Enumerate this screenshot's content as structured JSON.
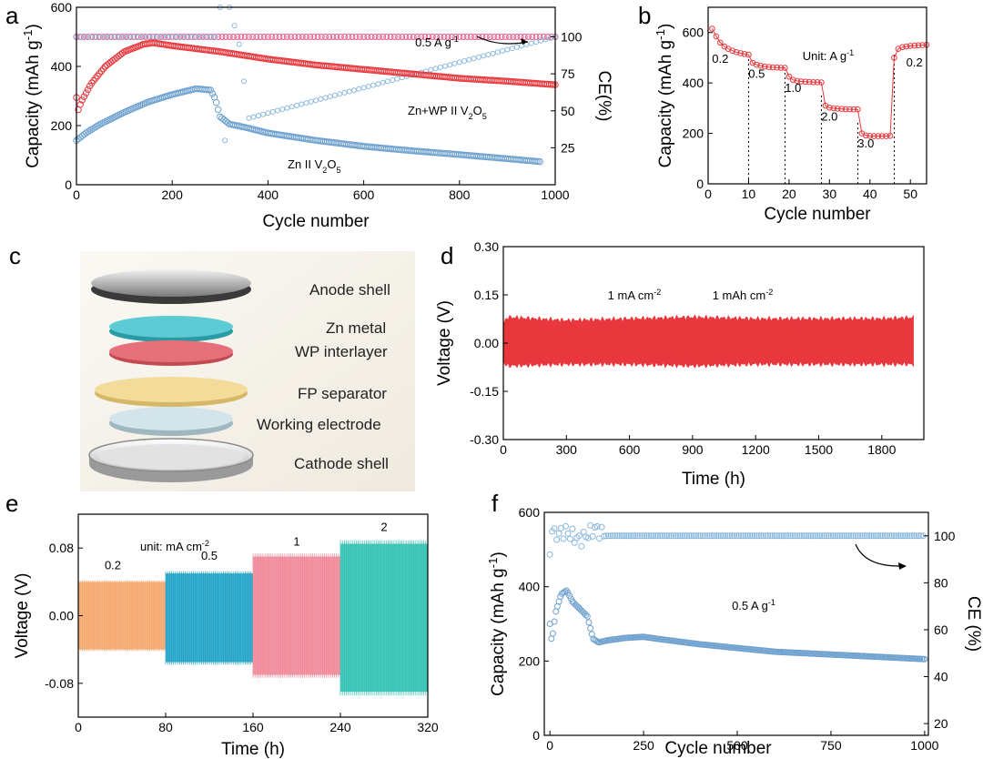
{
  "colors": {
    "red": "#e8383d",
    "blue": "#6fa1cf",
    "pink_ce": "#e85c86",
    "lightblue_ce": "#8ab8dd",
    "orange": "#f5a468",
    "teal_blue": "#1aa0c6",
    "pink": "#f08595",
    "teal": "#2cc0b0",
    "cell_anode": "#8a8a8a",
    "cell_zn": "#4ac3cc",
    "cell_wp": "#e46a72",
    "cell_fp": "#f0d890",
    "cell_work": "#c8dde4",
    "cell_cathode": "#d0d0d0"
  },
  "chart_data": [
    {
      "panel": "a",
      "type": "scatter",
      "xlabel": "Cycle number",
      "ylabel_main": "Capacity (mAh g",
      "ylabel_sup": "-1",
      "ylabel_close": ")",
      "ylabel_right": "CE(%)",
      "xlim": [
        0,
        1000
      ],
      "ylim": [
        0,
        600
      ],
      "ylim_right": [
        0,
        120
      ],
      "xticks": [
        "0",
        "200",
        "400",
        "600",
        "800",
        "1000"
      ],
      "yticks": [
        "0",
        "200",
        "400",
        "600"
      ],
      "yticks_right": [
        "25",
        "50",
        "75",
        "100"
      ],
      "rate_label_main": "0.5 A g",
      "rate_label_sup": "-1",
      "series_labels": [
        {
          "name": "Zn+WP",
          "main": "Zn+WP II V",
          "sub": "2",
          "mid": "O",
          "sub2": "5"
        },
        {
          "name": "Zn",
          "main": "Zn II V",
          "sub": "2",
          "mid": "O",
          "sub2": "5"
        }
      ],
      "series": [
        {
          "name": "Zn+WP II V2O5 capacity",
          "x": [
            0,
            2,
            10,
            30,
            60,
            100,
            140,
            160,
            200,
            300,
            400,
            500,
            600,
            700,
            800,
            900,
            1000
          ],
          "y": [
            295,
            245,
            280,
            340,
            400,
            450,
            475,
            480,
            470,
            450,
            425,
            405,
            390,
            375,
            360,
            350,
            338
          ]
        },
        {
          "name": "Zn II V2O5 capacity",
          "x": [
            0,
            20,
            50,
            100,
            150,
            200,
            250,
            280,
            290,
            300,
            320,
            350,
            400,
            500,
            600,
            700,
            800,
            900,
            970
          ],
          "y": [
            150,
            175,
            205,
            245,
            280,
            305,
            325,
            320,
            290,
            230,
            205,
            195,
            175,
            150,
            130,
            115,
            102,
            88,
            78
          ]
        },
        {
          "name": "Zn+WP CE",
          "x": [
            0,
            1000
          ],
          "y": [
            100,
            100
          ]
        },
        {
          "name": "Zn CE",
          "x": [
            0,
            290,
            300,
            310,
            320,
            340,
            360,
            1000
          ],
          "y": [
            100,
            100,
            120,
            30,
            120,
            95,
            45,
            100
          ]
        }
      ]
    },
    {
      "panel": "b",
      "type": "line",
      "xlabel": "Cycle number",
      "ylabel_main": "Capacity (mAh g",
      "ylabel_sup": "-1",
      "ylabel_close": ")",
      "xlim": [
        0,
        54
      ],
      "ylim": [
        0,
        700
      ],
      "xticks": [
        "0",
        "10",
        "20",
        "30",
        "40",
        "50"
      ],
      "yticks": [
        "0",
        "200",
        "400",
        "600"
      ],
      "unit_main": "Unit: A g",
      "unit_sup": "-1",
      "rate_labels": [
        "0.2",
        "0.5",
        "1.0",
        "2.0",
        "3.0",
        "0.2"
      ],
      "rate_label_x": [
        3,
        12,
        21,
        30,
        39,
        51
      ],
      "rate_label_y": [
        480,
        420,
        365,
        250,
        145,
        465
      ],
      "dividers": [
        10,
        19,
        28,
        37,
        46
      ],
      "series": [
        {
          "name": "capacity",
          "x": [
            1,
            2,
            3,
            4,
            5,
            6,
            7,
            8,
            9,
            10,
            11,
            12,
            13,
            14,
            15,
            16,
            17,
            18,
            19,
            20,
            21,
            22,
            23,
            24,
            25,
            26,
            27,
            28,
            29,
            30,
            31,
            32,
            33,
            34,
            35,
            36,
            37,
            38,
            39,
            40,
            41,
            42,
            43,
            44,
            45,
            46,
            47,
            48,
            49,
            50,
            51,
            52,
            53,
            54
          ],
          "y": [
            615,
            585,
            560,
            545,
            535,
            528,
            522,
            518,
            515,
            512,
            480,
            472,
            468,
            465,
            463,
            462,
            461,
            460,
            460,
            425,
            412,
            408,
            406,
            405,
            404,
            403,
            403,
            402,
            310,
            302,
            300,
            298,
            297,
            296,
            296,
            295,
            295,
            200,
            192,
            190,
            189,
            189,
            189,
            189,
            190,
            500,
            535,
            542,
            545,
            547,
            548,
            549,
            550,
            551
          ]
        }
      ]
    },
    {
      "panel": "d",
      "type": "area",
      "xlabel": "Time (h)",
      "ylabel": "Voltage (V)",
      "xlim": [
        0,
        2000
      ],
      "ylim": [
        -0.3,
        0.3
      ],
      "xticks": [
        "0",
        "300",
        "600",
        "900",
        "1200",
        "1500",
        "1800"
      ],
      "yticks": [
        "0.30",
        "0.15",
        "0.00",
        "-0.15",
        "-0.30"
      ],
      "current_main": "1 mA cm",
      "current_sup": "-2",
      "capacity_main": "1 mAh cm",
      "capacity_sup": "-2",
      "x": [
        0,
        20,
        300,
        600,
        900,
        1200,
        1500,
        1800,
        2000
      ],
      "upper": [
        0.06,
        0.08,
        0.07,
        0.075,
        0.08,
        0.075,
        0.075,
        0.075,
        0.08
      ],
      "lower": [
        -0.06,
        -0.07,
        -0.065,
        -0.065,
        -0.07,
        -0.065,
        -0.065,
        -0.065,
        -0.065
      ]
    },
    {
      "panel": "e",
      "type": "area",
      "xlabel": "Time (h)",
      "ylabel": "Voltage (V)",
      "xlim": [
        0,
        320
      ],
      "ylim": [
        -0.12,
        0.12
      ],
      "xticks": [
        "0",
        "80",
        "160",
        "240",
        "320"
      ],
      "yticks": [
        "0.08",
        "0.00",
        "-0.08"
      ],
      "unit_main": "unit: mA cm",
      "unit_sup": "-2",
      "segments": [
        {
          "label": "0.2",
          "x0": 0,
          "x1": 80,
          "upper": 0.04,
          "lower": -0.04
        },
        {
          "label": "0.5",
          "x0": 80,
          "x1": 160,
          "upper": 0.05,
          "lower": -0.055
        },
        {
          "label": "1",
          "x0": 160,
          "x1": 240,
          "upper": 0.07,
          "lower": -0.07
        },
        {
          "label": "2",
          "x0": 240,
          "x1": 320,
          "upper": 0.085,
          "lower": -0.09
        }
      ]
    },
    {
      "panel": "f",
      "type": "scatter",
      "xlabel": "Cycle number",
      "ylabel_main": "Capacity (mAh g",
      "ylabel_sup": "-1",
      "ylabel_close": ")",
      "ylabel_right": "CE (%)",
      "xlim": [
        -15,
        1010
      ],
      "ylim": [
        0,
        600
      ],
      "ylim_right": [
        15,
        110
      ],
      "xticks": [
        "0",
        "250",
        "500",
        "750",
        "1000"
      ],
      "yticks": [
        "0",
        "200",
        "400",
        "600"
      ],
      "yticks_right": [
        "20",
        "40",
        "60",
        "80",
        "100"
      ],
      "rate_label_main": "0.5 A g",
      "rate_label_sup": "-1",
      "series": [
        {
          "name": "capacity",
          "x": [
            0,
            5,
            15,
            30,
            45,
            60,
            80,
            100,
            115,
            130,
            150,
            200,
            250,
            300,
            400,
            500,
            600,
            700,
            800,
            900,
            1000
          ],
          "y": [
            300,
            250,
            330,
            380,
            390,
            360,
            340,
            320,
            260,
            250,
            255,
            262,
            265,
            258,
            245,
            235,
            225,
            220,
            215,
            210,
            205
          ]
        },
        {
          "name": "CE",
          "x": [
            0,
            5,
            10,
            40,
            80,
            120,
            150,
            1000
          ],
          "y": [
            92,
            105,
            100,
            102,
            98,
            103,
            100,
            100
          ]
        }
      ]
    }
  ],
  "panel_c": {
    "labels": [
      "Anode shell",
      "Zn metal",
      "WP interlayer",
      "FP separator",
      "Working electrode",
      "Cathode shell"
    ]
  },
  "panel_letters": [
    "a",
    "b",
    "c",
    "d",
    "e",
    "f"
  ]
}
